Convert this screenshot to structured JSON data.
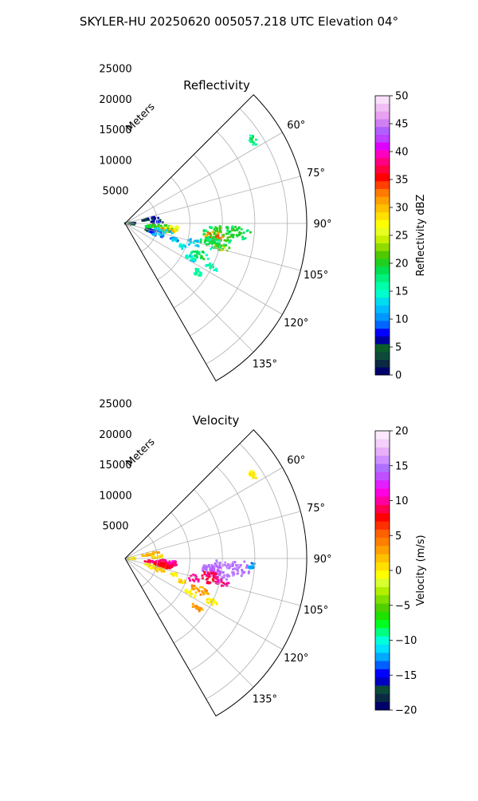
{
  "figure": {
    "title": "SKYLER-HU  20250620  005057.218 UTC Elevation 04°"
  },
  "chart_data": [
    {
      "type": "heatmap",
      "projection": "polar-sector",
      "title": "Reflectivity",
      "range_label": "Meters",
      "range_max": 28000,
      "range_ticks": [
        5000,
        10000,
        15000,
        20000,
        25000
      ],
      "azimuth_range": [
        45,
        150
      ],
      "azimuth_ticks": [
        "60°",
        "75°",
        "90°",
        "105°",
        "120°",
        "135°"
      ],
      "azimuth_tick_values": [
        60,
        75,
        90,
        105,
        120,
        135
      ],
      "grid": true,
      "colorbar": {
        "label": "Reflectivity dBZ",
        "min": 0,
        "max": 50,
        "ticks": [
          0,
          5,
          10,
          15,
          20,
          25,
          30,
          35,
          40,
          45,
          50
        ],
        "tick_labels": [
          "0",
          "5",
          "10",
          "15",
          "20",
          "25",
          "30",
          "35",
          "40",
          "45",
          "50"
        ],
        "colors": [
          "#00006a",
          "#0a2a44",
          "#0d4a3a",
          "#0a5e2a",
          "#0000a0",
          "#0000ff",
          "#0066ff",
          "#0099ff",
          "#00bbff",
          "#00ddee",
          "#00ffcc",
          "#00ffaa",
          "#00f080",
          "#00e050",
          "#20d020",
          "#50c800",
          "#90dc00",
          "#c8f000",
          "#e8ff20",
          "#ffff00",
          "#ffe000",
          "#ffc000",
          "#ffa000",
          "#ff7a00",
          "#ff4000",
          "#ff0000",
          "#ff0040",
          "#ff0080",
          "#ff00c0",
          "#e000ff",
          "#c040ff",
          "#b060ff",
          "#d080f0",
          "#e8a0f0",
          "#f0c0f4",
          "#f8e0fa"
        ]
      },
      "echoes": [
        {
          "az": 97,
          "r": 5500,
          "dr": 2500,
          "daz": 5,
          "value": 22
        },
        {
          "az": 99,
          "r": 6500,
          "dr": 1500,
          "daz": 3,
          "value": 33
        },
        {
          "az": 96,
          "r": 7500,
          "dr": 1200,
          "daz": 3,
          "value": 28
        },
        {
          "az": 101,
          "r": 6000,
          "dr": 1500,
          "daz": 3,
          "value": 14
        },
        {
          "az": 97,
          "r": 14500,
          "dr": 2500,
          "daz": 6,
          "value": 22
        },
        {
          "az": 98,
          "r": 14000,
          "dr": 1500,
          "daz": 3,
          "value": 35
        },
        {
          "az": 95,
          "r": 17500,
          "dr": 2000,
          "daz": 4,
          "value": 21
        },
        {
          "az": 103,
          "r": 13500,
          "dr": 2000,
          "daz": 4,
          "value": 20
        },
        {
          "az": 104,
          "r": 15500,
          "dr": 1200,
          "daz": 2,
          "value": 24
        },
        {
          "az": 106,
          "r": 11000,
          "dr": 1000,
          "daz": 3,
          "value": 15
        },
        {
          "az": 113,
          "r": 12500,
          "dr": 1500,
          "daz": 3,
          "value": 20
        },
        {
          "az": 117,
          "r": 15000,
          "dr": 1000,
          "daz": 2,
          "value": 18
        },
        {
          "az": 124,
          "r": 13500,
          "dr": 1000,
          "daz": 2,
          "value": 18
        },
        {
          "az": 118,
          "r": 11500,
          "dr": 1000,
          "daz": 2,
          "value": 16
        },
        {
          "az": 108,
          "r": 5000,
          "dr": 1500,
          "daz": 4,
          "value": 13
        },
        {
          "az": 106,
          "r": 4000,
          "dr": 1000,
          "daz": 3,
          "value": 8
        },
        {
          "az": 80,
          "r": 4000,
          "dr": 1500,
          "daz": 3,
          "value": 7
        },
        {
          "az": 87,
          "r": 5000,
          "dr": 1000,
          "daz": 3,
          "value": 9
        },
        {
          "az": 91,
          "r": 800,
          "dr": 800,
          "daz": 10,
          "value": 6
        },
        {
          "az": 57,
          "r": 23500,
          "dr": 500,
          "daz": 2,
          "value": 20
        },
        {
          "az": 108,
          "r": 8000,
          "dr": 600,
          "daz": 2,
          "value": 14
        },
        {
          "az": 112,
          "r": 9500,
          "dr": 600,
          "daz": 2,
          "value": 15
        }
      ]
    },
    {
      "type": "heatmap",
      "projection": "polar-sector",
      "title": "Velocity",
      "range_label": "Meters",
      "range_max": 28000,
      "range_ticks": [
        5000,
        10000,
        15000,
        20000,
        25000
      ],
      "azimuth_range": [
        45,
        150
      ],
      "azimuth_ticks": [
        "60°",
        "75°",
        "90°",
        "105°",
        "120°",
        "135°"
      ],
      "azimuth_tick_values": [
        60,
        75,
        90,
        105,
        120,
        135
      ],
      "grid": true,
      "colorbar": {
        "label": "Velocity (m/s)",
        "min": -20,
        "max": 20,
        "ticks": [
          -20,
          -15,
          -10,
          -5,
          0,
          5,
          10,
          15,
          20
        ],
        "tick_labels": [
          "−20",
          "−15",
          "−10",
          "−5",
          "0",
          "5",
          "10",
          "15",
          "20"
        ],
        "colors": [
          "#00006a",
          "#0a2a44",
          "#0d4a3a",
          "#0000c0",
          "#0000ff",
          "#0060ff",
          "#00aaff",
          "#00e0ff",
          "#00ffdd",
          "#00ff80",
          "#00ff20",
          "#20e000",
          "#50d000",
          "#80e000",
          "#b0f000",
          "#d8ff30",
          "#ffff00",
          "#ffe000",
          "#ffc000",
          "#ffa000",
          "#ff8000",
          "#ff6000",
          "#ff3000",
          "#ff0000",
          "#ff0050",
          "#ff00a0",
          "#ff00e0",
          "#e020ff",
          "#c050ff",
          "#b070ff",
          "#d090ff",
          "#e8b0f8",
          "#f4d0fa",
          "#fae8fc"
        ]
      },
      "echoes": [
        {
          "az": 97,
          "r": 5500,
          "dr": 2500,
          "daz": 5,
          "value": 9
        },
        {
          "az": 99,
          "r": 6500,
          "dr": 1500,
          "daz": 3,
          "value": 8
        },
        {
          "az": 96,
          "r": 7500,
          "dr": 1200,
          "daz": 3,
          "value": 10
        },
        {
          "az": 101,
          "r": 6000,
          "dr": 1500,
          "daz": 3,
          "value": 8
        },
        {
          "az": 97,
          "r": 14500,
          "dr": 2500,
          "daz": 6,
          "value": 15
        },
        {
          "az": 98,
          "r": 14000,
          "dr": 1500,
          "daz": 3,
          "value": 14
        },
        {
          "az": 95,
          "r": 17500,
          "dr": 2000,
          "daz": 4,
          "value": 15
        },
        {
          "az": 103,
          "r": 13500,
          "dr": 2000,
          "daz": 4,
          "value": 9
        },
        {
          "az": 104,
          "r": 15500,
          "dr": 1200,
          "daz": 2,
          "value": 10
        },
        {
          "az": 106,
          "r": 11000,
          "dr": 1000,
          "daz": 3,
          "value": 10
        },
        {
          "az": 113,
          "r": 12500,
          "dr": 1500,
          "daz": 3,
          "value": 3
        },
        {
          "az": 117,
          "r": 15000,
          "dr": 1000,
          "daz": 2,
          "value": 0
        },
        {
          "az": 124,
          "r": 13500,
          "dr": 1000,
          "daz": 2,
          "value": 3
        },
        {
          "az": 118,
          "r": 11500,
          "dr": 1000,
          "daz": 2,
          "value": 0
        },
        {
          "az": 108,
          "r": 5000,
          "dr": 1500,
          "daz": 4,
          "value": 1
        },
        {
          "az": 106,
          "r": 4000,
          "dr": 1000,
          "daz": 3,
          "value": 0
        },
        {
          "az": 80,
          "r": 4000,
          "dr": 1500,
          "daz": 3,
          "value": 2
        },
        {
          "az": 87,
          "r": 5000,
          "dr": 1000,
          "daz": 3,
          "value": 1
        },
        {
          "az": 91,
          "r": 800,
          "dr": 800,
          "daz": 10,
          "value": 0
        },
        {
          "az": 57,
          "r": 23500,
          "dr": 500,
          "daz": 2,
          "value": 0
        },
        {
          "az": 93,
          "r": 19500,
          "dr": 500,
          "daz": 2,
          "value": -12
        },
        {
          "az": 108,
          "r": 8000,
          "dr": 600,
          "daz": 2,
          "value": 0
        },
        {
          "az": 112,
          "r": 9500,
          "dr": 600,
          "daz": 2,
          "value": 1
        }
      ]
    }
  ]
}
